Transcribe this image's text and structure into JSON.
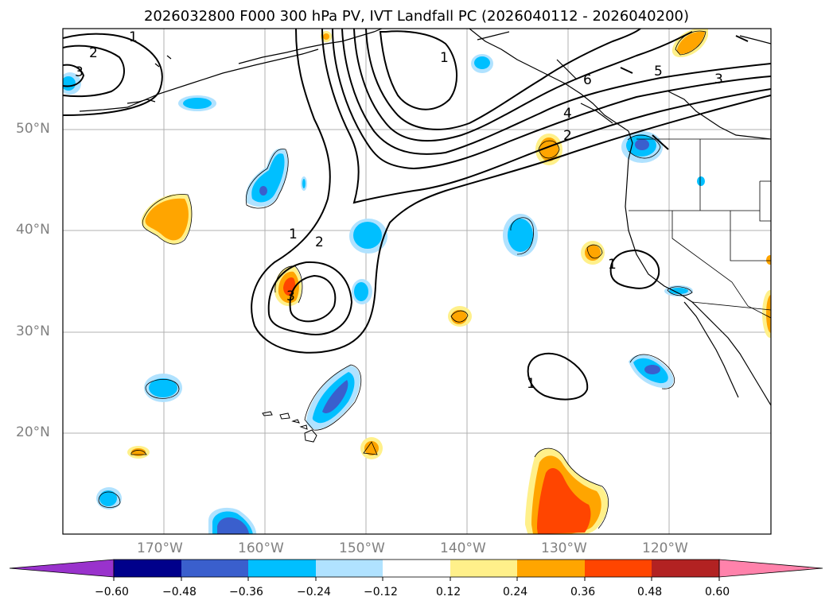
{
  "title": "2026032800 F000 300 hPa PV, IVT Landfall PC (2026040112 - 2026040200)",
  "map": {
    "lat_ticks": [
      "50°N",
      "40°N",
      "30°N",
      "20°N"
    ],
    "lon_ticks": [
      "170°W",
      "160°W",
      "150°W",
      "140°W",
      "130°W",
      "120°W"
    ],
    "contour_labels": [
      "1",
      "2",
      "3",
      "1",
      "1",
      "2",
      "3",
      "1",
      "2",
      "3",
      "4",
      "5",
      "6",
      "1"
    ],
    "gridlines": true
  },
  "colorbar": {
    "labels": [
      "−0.60",
      "−0.48",
      "−0.36",
      "−0.24",
      "−0.12",
      "0.12",
      "0.24",
      "0.36",
      "0.48",
      "0.60"
    ],
    "colors": [
      "#9932cc",
      "#00008b",
      "#3a5fcd",
      "#00bfff",
      "#b0e2ff",
      "#ffffff",
      "#fff08a",
      "#ffa500",
      "#ff4500",
      "#b22222",
      "#ff82ab"
    ]
  }
}
